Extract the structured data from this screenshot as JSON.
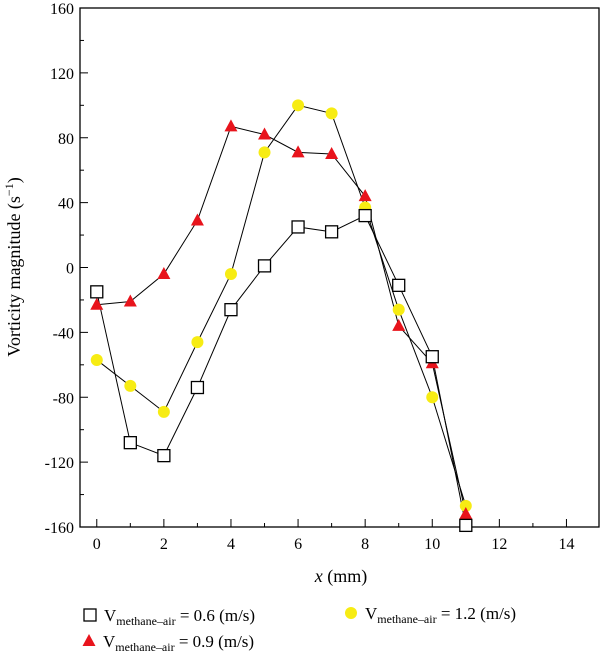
{
  "chart_data": {
    "type": "line",
    "xlabel_var": "x",
    "xlabel_unit": " (mm)",
    "ylabel_main": "Vorticity magnitude (s",
    "ylabel_sup": "−1",
    "ylabel_close": ")",
    "xlim": [
      -0.5,
      15
    ],
    "ylim": [
      -160,
      160
    ],
    "xticks": [
      0,
      2,
      4,
      6,
      8,
      10,
      12,
      14
    ],
    "yticks": [
      -160,
      -120,
      -80,
      -40,
      0,
      40,
      80,
      120,
      160
    ],
    "x": [
      0,
      1,
      2,
      3,
      4,
      5,
      6,
      7,
      8,
      9,
      10,
      11
    ],
    "series": [
      {
        "name_base": "V",
        "name_sub": "methane–air",
        "name_rest": " = 0.6 (m/s)",
        "marker": "open-square",
        "color": "#000000",
        "values": [
          -15,
          -108,
          -116,
          -74,
          -26,
          1,
          25,
          22,
          32,
          -11,
          -55,
          -159
        ]
      },
      {
        "name_base": "V",
        "name_sub": "methane–air",
        "name_rest": " = 0.9 (m/s)",
        "marker": "triangle",
        "color": "#e8141c",
        "values": [
          -23,
          -21,
          -4,
          29,
          87,
          82,
          71,
          70,
          44,
          -36,
          -59,
          -152
        ]
      },
      {
        "name_base": "V",
        "name_sub": "methane–air",
        "name_rest": " = 1.2 (m/s)",
        "marker": "circle",
        "color": "#f7ec13",
        "values": [
          -57,
          -73,
          -89,
          -46,
          -4,
          71,
          100,
          95,
          37,
          -26,
          -80,
          -147
        ]
      }
    ],
    "grid": false,
    "legend_position": "bottom"
  }
}
